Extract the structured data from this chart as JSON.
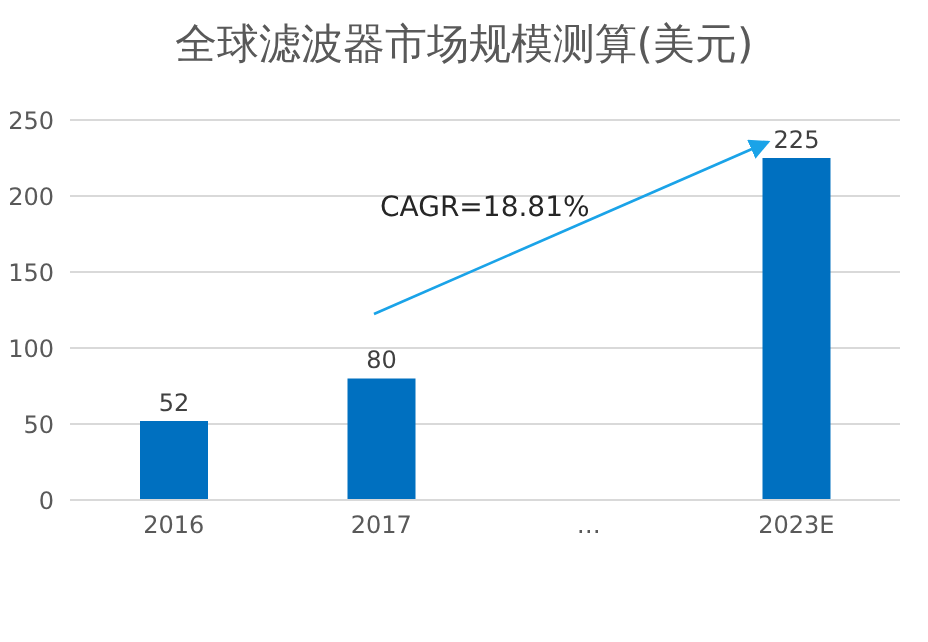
{
  "chart_data": {
    "type": "bar",
    "title": "全球滤波器市场规模测算(美元)",
    "categories": [
      "2016",
      "2017",
      "…",
      "2023E"
    ],
    "values": [
      52,
      80,
      null,
      225
    ],
    "color": "#0070c0",
    "ylim": [
      0,
      250
    ],
    "yticks": [
      0,
      50,
      100,
      150,
      200,
      250
    ],
    "grid": "y",
    "data_labels": true,
    "annotations": [
      "CAGR=18.81%"
    ]
  }
}
